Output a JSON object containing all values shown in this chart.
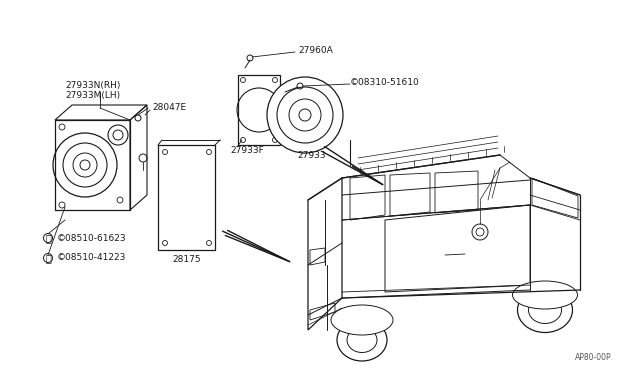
{
  "bg_color": "#ffffff",
  "line_color": "#1a1a1a",
  "gray_line": "#555555",
  "watermark": "AP80-00P",
  "labels": {
    "27933N_RH": "27933N(RH)",
    "27933M_LH": "27933M(LH)",
    "28047E": "28047E",
    "08510_61623": "S 08510-61623",
    "08510_41223": "S 08510-41223",
    "28175": "28175",
    "27960A": "27960A",
    "08310_51610": "S 08310-51610",
    "27933F": "27933F",
    "27933": "27933"
  },
  "font_size": 6.5
}
